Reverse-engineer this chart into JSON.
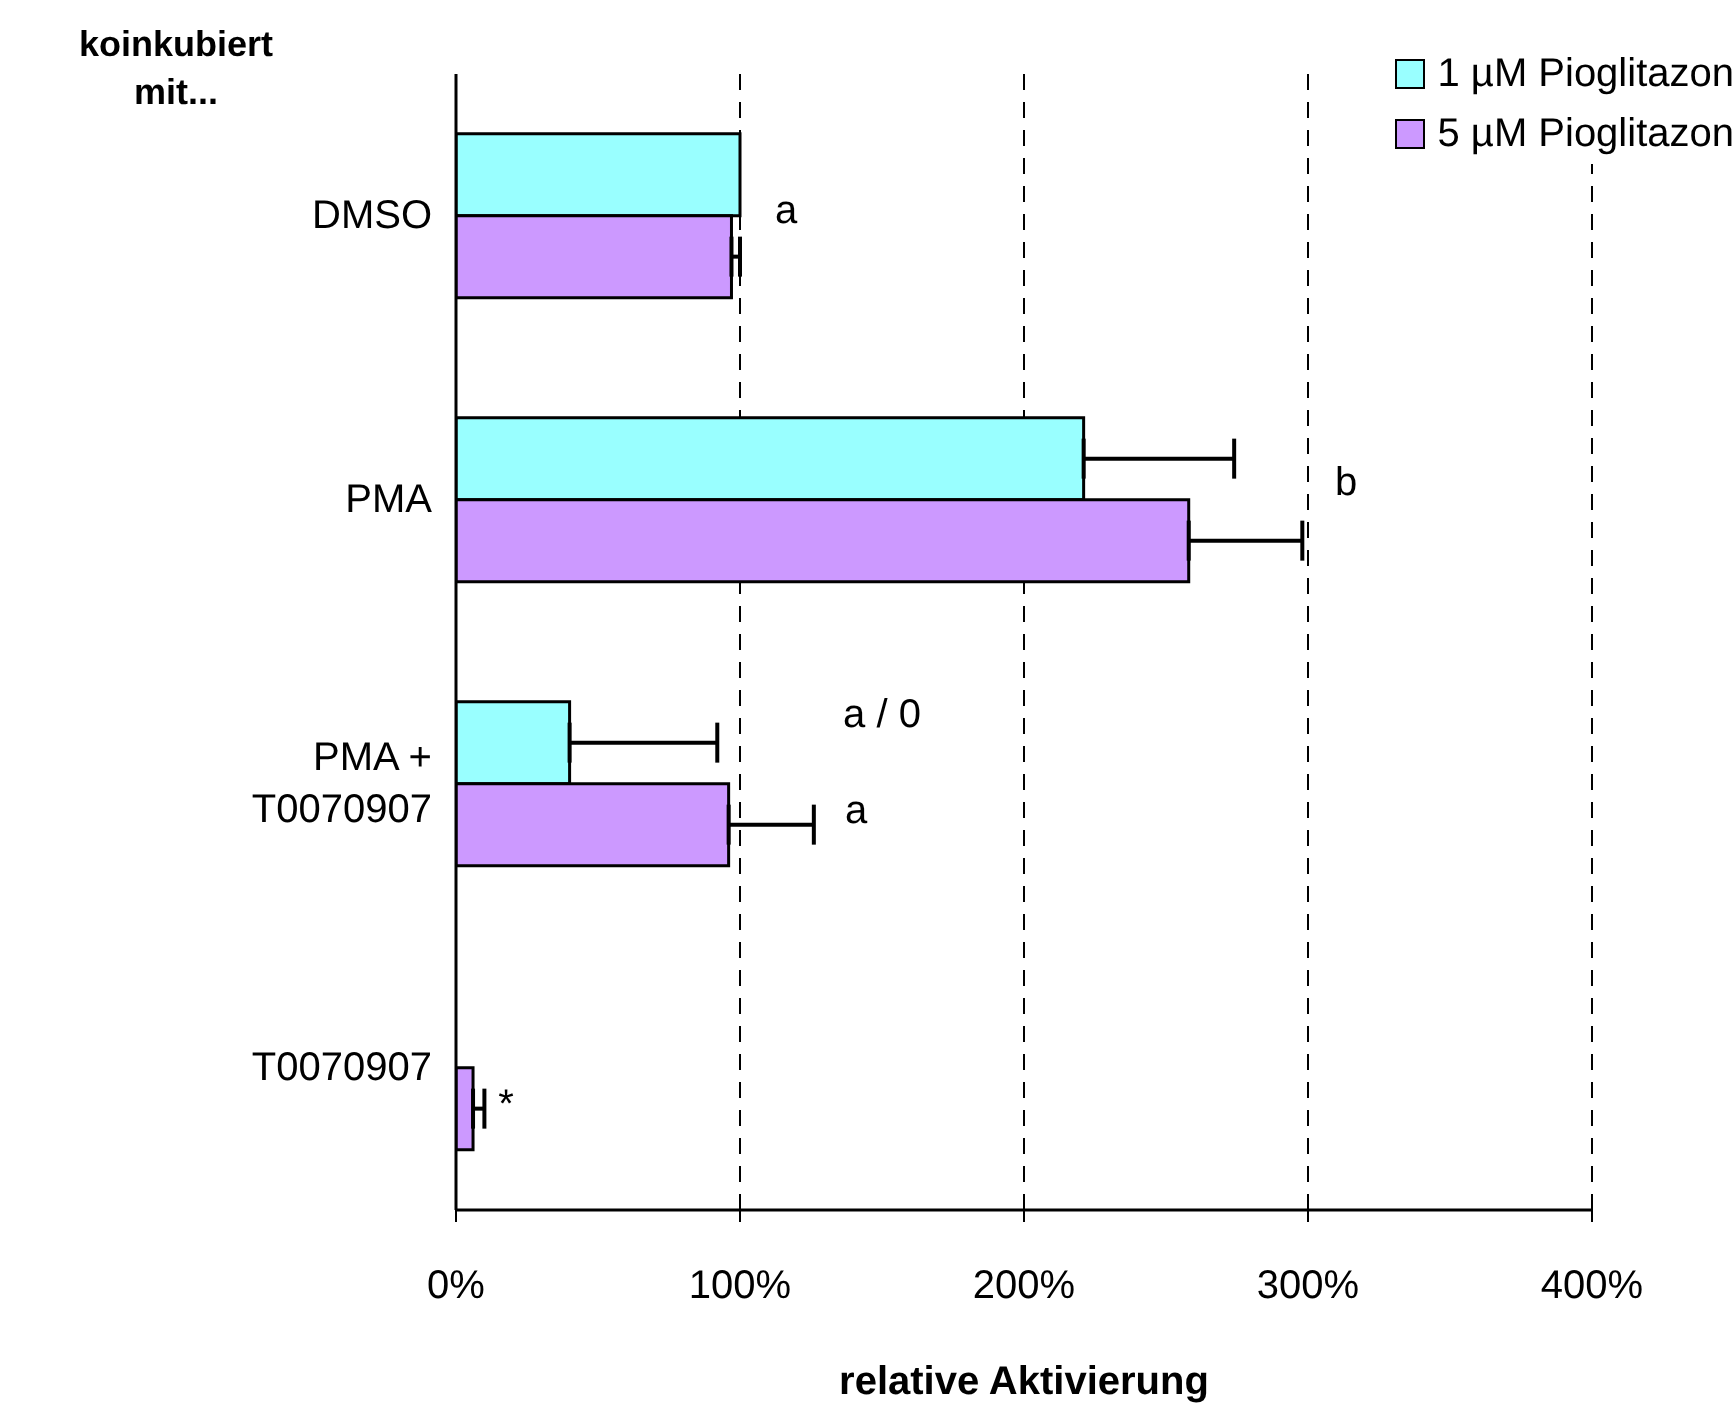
{
  "chart_data": {
    "type": "bar",
    "orientation": "horizontal",
    "ylabel": "koinkubiert mit...",
    "xlabel": "relative Aktivierung",
    "categories": [
      "DMSO",
      "PMA",
      "PMA + T0070907",
      "T0070907"
    ],
    "series": [
      {
        "name": "1 µM Pioglitazon",
        "color": "#99ffff",
        "values": [
          100,
          221,
          40,
          0
        ],
        "errors": [
          null,
          [
            221,
            274
          ],
          [
            40,
            92
          ],
          null
        ]
      },
      {
        "name": "5 µM Pioglitazon",
        "color": "#cc99ff",
        "values": [
          97,
          258,
          96,
          6
        ],
        "errors": [
          [
            97,
            100
          ],
          [
            258,
            298
          ],
          [
            96,
            126
          ],
          [
            6,
            10
          ]
        ]
      }
    ],
    "xlim": [
      0,
      400
    ],
    "xticks": [
      {
        "value": 0,
        "label": "0%"
      },
      {
        "value": 100,
        "label": "100%"
      },
      {
        "value": 200,
        "label": "200%"
      },
      {
        "value": 300,
        "label": "300%"
      },
      {
        "value": 400,
        "label": "400%"
      }
    ],
    "grid": "x",
    "legend": "top right",
    "annotations": [
      "a",
      "b",
      "a / 0",
      "a",
      "*"
    ]
  }
}
